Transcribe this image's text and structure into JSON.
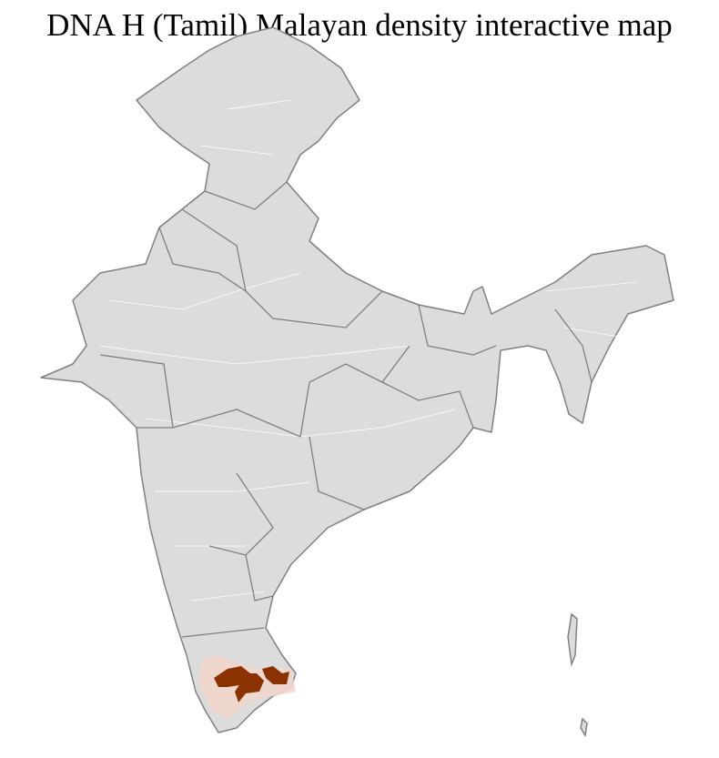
{
  "title": "DNA H (Tamil) Malayan density interactive map",
  "colors": {
    "land": "#dcdcdc",
    "district_border": "#ffffff",
    "state_border": "#808080",
    "high_density": "#8b3300",
    "low_density": "#f2d6cc"
  }
}
